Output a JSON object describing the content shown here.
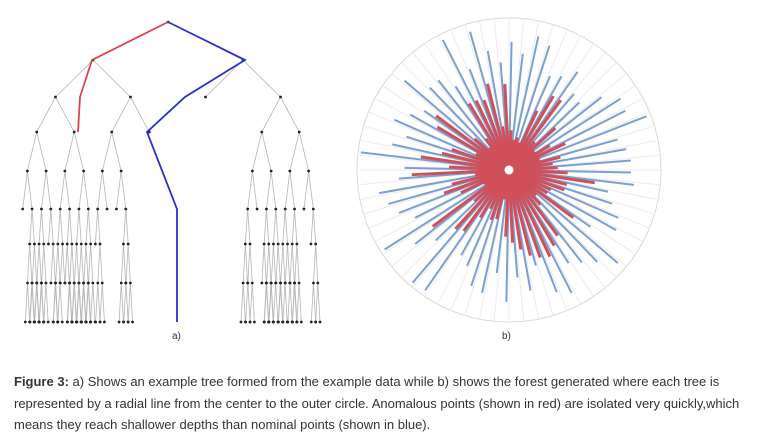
{
  "panels": {
    "a": {
      "label": "a)"
    },
    "b": {
      "label": "b)"
    }
  },
  "colors": {
    "anomalous": "#d9454f",
    "nominal": "#2a2fd0",
    "tree_edge": "#b5b5b5",
    "radial_nominal": "#7b9fd0",
    "radial_anomalous": "#d0505a",
    "circle": "#d8d8d8"
  },
  "caption": {
    "label": "Figure 3:",
    "text": " a) Shows an example tree formed from the example data while b) shows the forest generated where each tree is represented by a radial line from the center to the outer circle. Anomalous points (shown in red) are isolated very quickly,which means they reach shallower depths than nominal points (shown in blue)."
  }
}
